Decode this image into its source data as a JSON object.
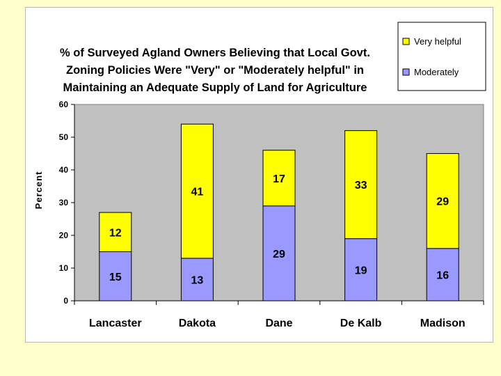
{
  "chart_data": {
    "type": "bar",
    "stacked": true,
    "title_lines": [
      "% of Surveyed Agland Owners Believing that Local Govt.",
      "Zoning Policies Were \"Very\" or \"Moderately helpful\" in",
      "Maintaining an Adequate Supply of Land for Agriculture"
    ],
    "categories": [
      "Lancaster",
      "Dakota",
      "Dane",
      "De Kalb",
      "Madison"
    ],
    "series": [
      {
        "name": "Moderately",
        "values": [
          15,
          13,
          29,
          19,
          16
        ],
        "color": "#9999ff"
      },
      {
        "name": "Very helpful",
        "values": [
          12,
          41,
          17,
          33,
          29
        ],
        "color": "#ffff00"
      }
    ],
    "xlabel": "",
    "ylabel": "Percent",
    "ylim": [
      0,
      60
    ],
    "yticks": [
      0,
      10,
      20,
      30,
      40,
      50,
      60
    ],
    "grid": false,
    "legend_position": "top-right",
    "plot_background": "#c0c0c0",
    "page_background": "#ffffcc"
  }
}
